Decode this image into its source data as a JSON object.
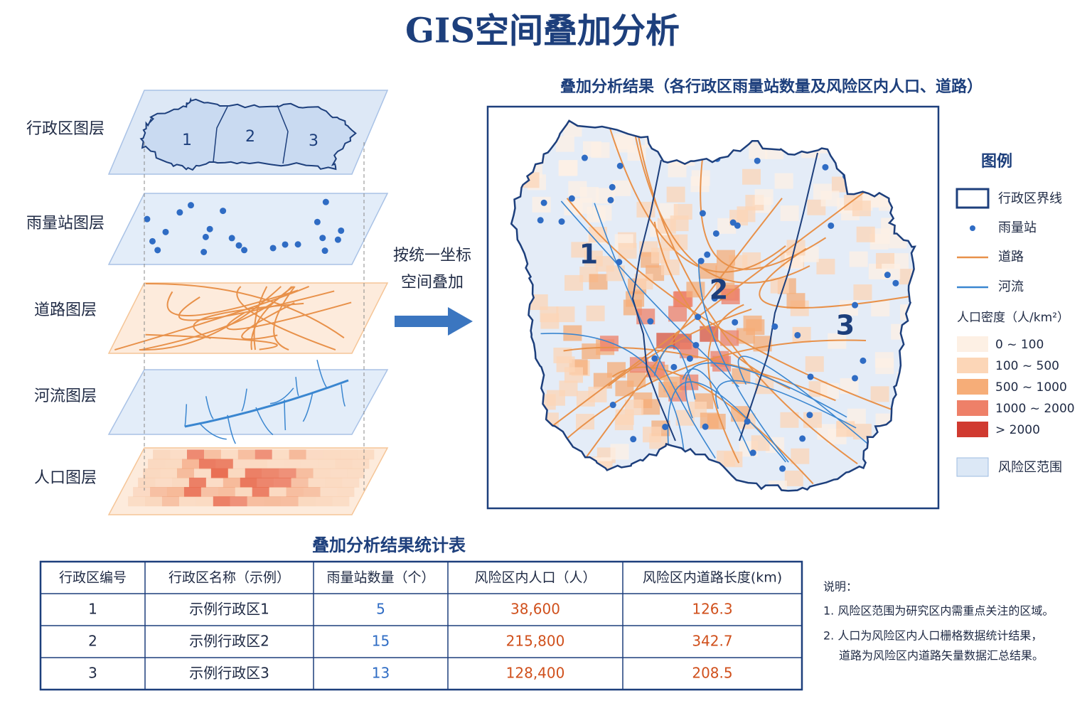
{
  "title": "GIS空间叠加分析",
  "layers": [
    "行政区图层",
    "雨量站图层",
    "道路图层",
    "河流图层",
    "人口图层"
  ],
  "layer_region_labels": [
    "1",
    "2",
    "3"
  ],
  "arrow_text": [
    "按统一坐标",
    "空间叠加"
  ],
  "result": {
    "title": "叠加分析结果（各行政区雨量站数量及风险区内人口、道路）",
    "region_labels": [
      "1",
      "2",
      "3"
    ]
  },
  "legend": {
    "title": "图例",
    "items": [
      "行政区界线",
      "雨量站",
      "道路",
      "河流"
    ],
    "density_title": "人口密度（人/km²）",
    "density_classes": [
      "0 ~ 100",
      "100 ~ 500",
      "500 ~ 1000",
      "1000 ~ 2000",
      "> 2000"
    ],
    "risk": "风险区范围"
  },
  "table": {
    "title": "叠加分析结果统计表",
    "header": [
      "行政区编号",
      "行政区名称（示例）",
      "雨量站数量（个）",
      "风险区内人口（人）",
      "风险区内道路长度(km)"
    ],
    "rows": [
      [
        "1",
        "示例行政区1",
        "5",
        "38,600",
        "126.3"
      ],
      [
        "2",
        "示例行政区2",
        "15",
        "215,800",
        "342.7"
      ],
      [
        "3",
        "示例行政区3",
        "13",
        "128,400",
        "208.5"
      ]
    ]
  },
  "notes": {
    "title": "说明：",
    "items": [
      "1. 风险区范围为研究区内需重点关注的区域。",
      "2. 人口为风险区内人口栅格数据统计结果，",
      "道路为风险区内道路矢量数据汇总结果。"
    ]
  }
}
